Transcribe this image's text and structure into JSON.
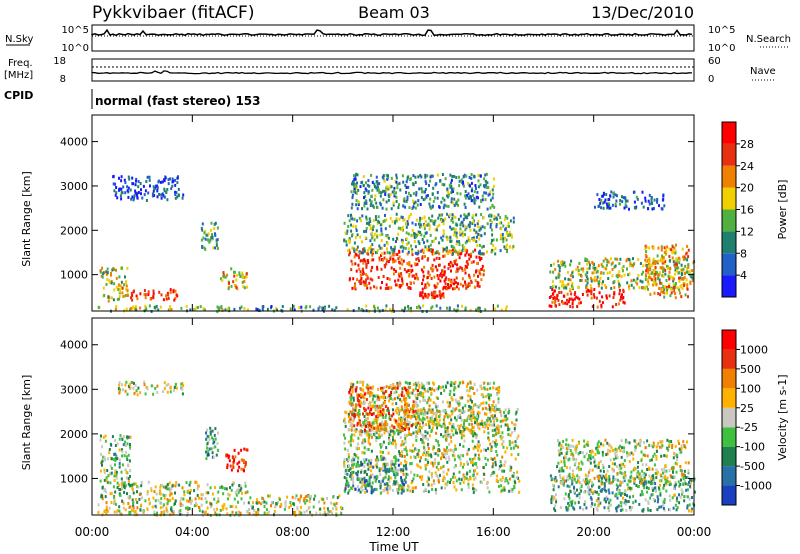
{
  "header": {
    "station": "Pykkvibaer (fitACF)",
    "beam": "Beam 03",
    "date": "13/Dec/2010"
  },
  "strip_labels": {
    "nsky": "N.Sky",
    "nsearch": "N.Search",
    "nsky_top": "10^5",
    "nsky_bottom": "10^0",
    "nsearch_top": "10^5",
    "nsearch_bottom": "10^0",
    "freq": "Freq.",
    "freq_unit": "[MHz]",
    "freq_top": "18",
    "freq_bottom": "8",
    "nave": "Nave",
    "nave_top": "60",
    "nave_bottom": "0",
    "cpid": "CPID",
    "cpid_value": "normal (fast stereo) 153"
  },
  "x_axis": {
    "label": "Time UT",
    "ticks": [
      "00:00",
      "04:00",
      "08:00",
      "12:00",
      "16:00",
      "20:00",
      "00:00"
    ]
  },
  "chart_data": [
    {
      "type": "heatmap",
      "panel": "power",
      "ylabel": "Slant Range [km]",
      "yticks": [
        1000,
        2000,
        3000,
        4000
      ],
      "ylim": [
        180,
        4600
      ],
      "xlim_hours": [
        0,
        24
      ],
      "colorbar_label": "Power [dB]",
      "colorbar_ticks": [
        "4",
        "8",
        "12",
        "16",
        "20",
        "24",
        "28"
      ],
      "colorbar_colors": [
        "#1a1aff",
        "#2060c8",
        "#208070",
        "#50b040",
        "#f0d000",
        "#f08000",
        "#e83010",
        "#ff0000"
      ],
      "regions": [
        {
          "t": [
            0.2,
            6.2
          ],
          "r": [
            200,
            330
          ],
          "level": 0.45
        },
        {
          "t": [
            0.3,
            1.4
          ],
          "r": [
            400,
            1200
          ],
          "level": 0.55
        },
        {
          "t": [
            1.5,
            3.4
          ],
          "r": [
            450,
            700
          ],
          "level": 0.85
        },
        {
          "t": [
            0.8,
            3.6
          ],
          "r": [
            2700,
            3250
          ],
          "level": 0.15
        },
        {
          "t": [
            4.3,
            5.0
          ],
          "r": [
            1600,
            2200
          ],
          "level": 0.35
        },
        {
          "t": [
            5.1,
            6.2
          ],
          "r": [
            700,
            1200
          ],
          "level": 0.6
        },
        {
          "t": [
            6.5,
            9.8
          ],
          "r": [
            200,
            320
          ],
          "level": 0.3
        },
        {
          "t": [
            10.0,
            16.5
          ],
          "r": [
            200,
            330
          ],
          "level": 0.4
        },
        {
          "t": [
            10.2,
            15.6
          ],
          "r": [
            700,
            1600
          ],
          "level": 0.85
        },
        {
          "t": [
            10.0,
            16.8
          ],
          "r": [
            1500,
            2400
          ],
          "level": 0.4
        },
        {
          "t": [
            10.3,
            16.0
          ],
          "r": [
            2500,
            3300
          ],
          "level": 0.3
        },
        {
          "t": [
            13.0,
            14.0
          ],
          "r": [
            500,
            650
          ],
          "level": 0.9
        },
        {
          "t": [
            18.2,
            21.2
          ],
          "r": [
            300,
            700
          ],
          "level": 0.92
        },
        {
          "t": [
            18.2,
            24.0
          ],
          "r": [
            700,
            1400
          ],
          "level": 0.5
        },
        {
          "t": [
            22.0,
            23.8
          ],
          "r": [
            500,
            1700
          ],
          "level": 0.65
        },
        {
          "t": [
            20.0,
            22.8
          ],
          "r": [
            2500,
            2900
          ],
          "level": 0.2
        }
      ]
    },
    {
      "type": "heatmap",
      "panel": "velocity",
      "ylabel": "Slant Range [km]",
      "yticks": [
        1000,
        2000,
        3000,
        4000
      ],
      "ylim": [
        180,
        4600
      ],
      "xlim_hours": [
        0,
        24
      ],
      "colorbar_label": "Velocity [m s-1]",
      "colorbar_ticks": [
        "1000",
        "500",
        "100",
        "25",
        "-25",
        "-100",
        "-500",
        "-1000"
      ],
      "colorbar_colors": [
        "#1a40c0",
        "#2a70a8",
        "#208050",
        "#40c040",
        "#c8c8c0",
        "#ffb000",
        "#f08000",
        "#e83010",
        "#ff0000"
      ],
      "regions": [
        {
          "t": [
            0.2,
            6.5
          ],
          "r": [
            200,
            600
          ],
          "level": 0.5
        },
        {
          "t": [
            0.3,
            1.5
          ],
          "r": [
            600,
            2000
          ],
          "level": 0.4
        },
        {
          "t": [
            1.0,
            6.2
          ],
          "r": [
            650,
            950
          ],
          "level": 0.48
        },
        {
          "t": [
            1.0,
            3.6
          ],
          "r": [
            2900,
            3200
          ],
          "level": 0.48
        },
        {
          "t": [
            5.3,
            6.2
          ],
          "r": [
            1200,
            1700
          ],
          "level": 0.92
        },
        {
          "t": [
            4.5,
            5.0
          ],
          "r": [
            1400,
            2200
          ],
          "level": 0.3
        },
        {
          "t": [
            6.5,
            10.0
          ],
          "r": [
            200,
            650
          ],
          "level": 0.5
        },
        {
          "t": [
            10.0,
            17.0
          ],
          "r": [
            700,
            2600
          ],
          "level": 0.48
        },
        {
          "t": [
            10.2,
            16.2
          ],
          "r": [
            2000,
            3200
          ],
          "level": 0.48
        },
        {
          "t": [
            10.2,
            13.0
          ],
          "r": [
            2100,
            3100
          ],
          "level": 0.75
        },
        {
          "t": [
            10.0,
            12.5
          ],
          "r": [
            700,
            1500
          ],
          "level": 0.3
        },
        {
          "t": [
            18.2,
            24.0
          ],
          "r": [
            300,
            1100
          ],
          "level": 0.35
        },
        {
          "t": [
            18.5,
            23.8
          ],
          "r": [
            900,
            1900
          ],
          "level": 0.48
        }
      ]
    }
  ],
  "colors": {
    "axis": "#000000",
    "background": "#ffffff"
  }
}
